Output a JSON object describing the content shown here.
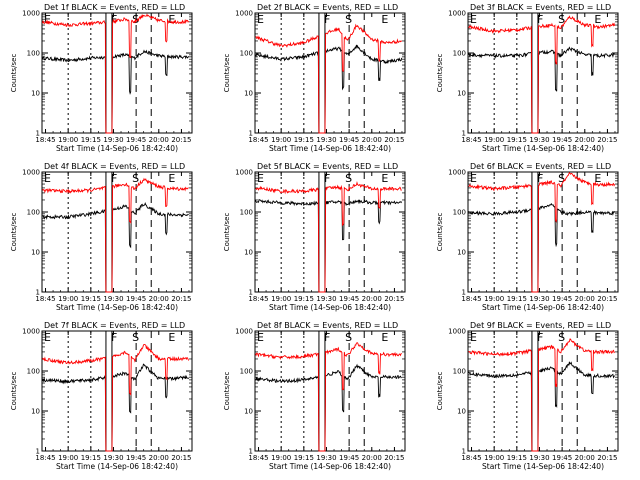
{
  "figure": {
    "xlabel": "Start Time (14-Sep-06 18:42:40)",
    "ylabel": "Counts/sec",
    "event_markers": [
      "F",
      "S",
      "E"
    ],
    "colors": {
      "events": "#000000",
      "lld": "#ff0000",
      "background": "#ffffff"
    }
  },
  "chart_data": [
    {
      "type": "line",
      "title": "Det 1f BLACK = Events, RED = LLD",
      "xlabel": "Start Time (14-Sep-06 18:42:40)",
      "ylabel": "Counts/sec",
      "yscale": "log",
      "ylim": [
        1,
        1000
      ],
      "xlim": [
        "18:42:40",
        "20:22:00"
      ],
      "x_ticks": [
        "18:45",
        "19:00",
        "19:15",
        "19:30",
        "19:45",
        "20:00",
        "20:15"
      ],
      "y_ticks": [
        "1",
        "10",
        "100",
        "1000"
      ],
      "series": [
        {
          "name": "Events",
          "color": "#000000",
          "x": [
            "18:43",
            "19:00",
            "19:15",
            "19:28",
            "19:38",
            "19:44",
            "19:50",
            "20:00",
            "20:10",
            "20:20"
          ],
          "y": [
            75,
            65,
            75,
            80,
            90,
            75,
            110,
            85,
            80,
            80
          ]
        },
        {
          "name": "LLD",
          "color": "#ff0000",
          "x": [
            "18:43",
            "19:00",
            "19:15",
            "19:28",
            "19:38",
            "19:44",
            "19:50",
            "20:00",
            "20:10",
            "20:20"
          ],
          "y": [
            600,
            500,
            550,
            600,
            700,
            600,
            900,
            650,
            600,
            600
          ]
        }
      ],
      "markers": {
        "F": "19:27",
        "S": "19:41",
        "E": "20:05"
      }
    },
    {
      "type": "line",
      "title": "Det 2f BLACK = Events, RED = LLD",
      "xlabel": "Start Time (14-Sep-06 18:42:40)",
      "ylabel": "Counts/sec",
      "yscale": "log",
      "ylim": [
        1,
        1000
      ],
      "xlim": [
        "18:42:40",
        "20:22:00"
      ],
      "x_ticks": [
        "18:45",
        "19:00",
        "19:15",
        "19:30",
        "19:45",
        "20:00",
        "20:15"
      ],
      "y_ticks": [
        "1",
        "10",
        "100",
        "1000"
      ],
      "series": [
        {
          "name": "Events",
          "color": "#000000",
          "x": [
            "18:43",
            "19:00",
            "19:15",
            "19:28",
            "19:38",
            "19:44",
            "19:50",
            "20:00",
            "20:10",
            "20:20"
          ],
          "y": [
            90,
            70,
            80,
            110,
            130,
            90,
            150,
            70,
            60,
            70
          ]
        },
        {
          "name": "LLD",
          "color": "#ff0000",
          "x": [
            "18:43",
            "19:00",
            "19:15",
            "19:28",
            "19:38",
            "19:44",
            "19:50",
            "20:00",
            "20:10",
            "20:20"
          ],
          "y": [
            250,
            150,
            180,
            300,
            400,
            200,
            500,
            220,
            180,
            200
          ]
        }
      ],
      "markers": {
        "F": "19:27",
        "S": "19:41",
        "E": "20:05"
      }
    },
    {
      "type": "line",
      "title": "Det 3f BLACK = Events, RED = LLD",
      "xlabel": "Start Time (14-Sep-06 18:42:40)",
      "ylabel": "Counts/sec",
      "yscale": "log",
      "ylim": [
        1,
        1000
      ],
      "xlim": [
        "18:42:40",
        "20:22:00"
      ],
      "x_ticks": [
        "18:45",
        "19:00",
        "19:15",
        "19:30",
        "19:45",
        "20:00",
        "20:15"
      ],
      "y_ticks": [
        "1",
        "10",
        "100",
        "1000"
      ],
      "series": [
        {
          "name": "Events",
          "color": "#000000",
          "x": [
            "18:43",
            "19:00",
            "19:15",
            "19:28",
            "19:38",
            "19:44",
            "19:50",
            "20:00",
            "20:10",
            "20:20"
          ],
          "y": [
            90,
            85,
            85,
            100,
            110,
            85,
            130,
            90,
            85,
            90
          ]
        },
        {
          "name": "LLD",
          "color": "#ff0000",
          "x": [
            "18:43",
            "19:00",
            "19:15",
            "19:28",
            "19:38",
            "19:44",
            "19:50",
            "20:00",
            "20:10",
            "20:20"
          ],
          "y": [
            450,
            350,
            380,
            450,
            500,
            420,
            800,
            500,
            450,
            500
          ]
        }
      ],
      "markers": {
        "F": "19:27",
        "S": "19:41",
        "E": "20:05"
      }
    },
    {
      "type": "line",
      "title": "Det 4f BLACK = Events, RED = LLD",
      "xlabel": "Start Time (14-Sep-06 18:42:40)",
      "ylabel": "Counts/sec",
      "yscale": "log",
      "ylim": [
        1,
        1000
      ],
      "xlim": [
        "18:42:40",
        "20:22:00"
      ],
      "x_ticks": [
        "18:45",
        "19:00",
        "19:15",
        "19:30",
        "19:45",
        "20:00",
        "20:15"
      ],
      "y_ticks": [
        "1",
        "10",
        "100",
        "1000"
      ],
      "series": [
        {
          "name": "Events",
          "color": "#000000",
          "x": [
            "18:43",
            "19:00",
            "19:15",
            "19:28",
            "19:38",
            "19:44",
            "19:50",
            "20:00",
            "20:10",
            "20:20"
          ],
          "y": [
            75,
            75,
            90,
            110,
            140,
            90,
            160,
            90,
            85,
            85
          ]
        },
        {
          "name": "LLD",
          "color": "#ff0000",
          "x": [
            "18:43",
            "19:00",
            "19:15",
            "19:28",
            "19:38",
            "19:44",
            "19:50",
            "20:00",
            "20:10",
            "20:20"
          ],
          "y": [
            350,
            330,
            350,
            420,
            500,
            380,
            650,
            430,
            380,
            380
          ]
        }
      ],
      "markers": {
        "F": "19:27",
        "S": "19:41",
        "E": "20:05"
      }
    },
    {
      "type": "line",
      "title": "Det 5f BLACK = Events, RED = LLD",
      "xlabel": "Start Time (14-Sep-06 18:42:40)",
      "ylabel": "Counts/sec",
      "yscale": "log",
      "ylim": [
        1,
        1000
      ],
      "xlim": [
        "18:42:40",
        "20:22:00"
      ],
      "x_ticks": [
        "18:45",
        "19:00",
        "19:15",
        "19:30",
        "19:45",
        "20:00",
        "20:15"
      ],
      "y_ticks": [
        "1",
        "10",
        "100",
        "1000"
      ],
      "series": [
        {
          "name": "Events",
          "color": "#000000",
          "x": [
            "18:43",
            "19:00",
            "19:15",
            "19:28",
            "19:38",
            "19:44",
            "19:50",
            "20:00",
            "20:10",
            "20:20"
          ],
          "y": [
            190,
            170,
            160,
            170,
            180,
            160,
            190,
            170,
            170,
            170
          ]
        },
        {
          "name": "LLD",
          "color": "#ff0000",
          "x": [
            "18:43",
            "19:00",
            "19:15",
            "19:28",
            "19:38",
            "19:44",
            "19:50",
            "20:00",
            "20:10",
            "20:20"
          ],
          "y": [
            400,
            330,
            330,
            380,
            420,
            360,
            500,
            380,
            380,
            380
          ]
        }
      ],
      "markers": {
        "F": "19:27",
        "S": "19:41",
        "E": "20:05"
      }
    },
    {
      "type": "line",
      "title": "Det 6f BLACK = Events, RED = LLD",
      "xlabel": "Start Time (14-Sep-06 18:42:40)",
      "ylabel": "Counts/sec",
      "yscale": "log",
      "ylim": [
        1,
        1000
      ],
      "xlim": [
        "18:42:40",
        "20:22:00"
      ],
      "x_ticks": [
        "18:45",
        "19:00",
        "19:15",
        "19:30",
        "19:45",
        "20:00",
        "20:15"
      ],
      "y_ticks": [
        "1",
        "10",
        "100",
        "1000"
      ],
      "series": [
        {
          "name": "Events",
          "color": "#000000",
          "x": [
            "18:43",
            "19:00",
            "19:15",
            "19:28",
            "19:38",
            "19:44",
            "19:50",
            "20:00",
            "20:10",
            "20:20"
          ],
          "y": [
            95,
            90,
            100,
            120,
            150,
            100,
            90,
            100,
            95,
            95
          ]
        },
        {
          "name": "LLD",
          "color": "#ff0000",
          "x": [
            "18:43",
            "19:00",
            "19:15",
            "19:28",
            "19:38",
            "19:44",
            "19:50",
            "20:00",
            "20:10",
            "20:20"
          ],
          "y": [
            450,
            380,
            420,
            480,
            550,
            450,
            900,
            550,
            480,
            500
          ]
        }
      ],
      "markers": {
        "F": "19:27",
        "S": "19:41",
        "E": "20:05"
      }
    },
    {
      "type": "line",
      "title": "Det 7f BLACK = Events, RED = LLD",
      "xlabel": "Start Time (14-Sep-06 18:42:40)",
      "ylabel": "Counts/sec",
      "yscale": "log",
      "ylim": [
        1,
        1000
      ],
      "xlim": [
        "18:42:40",
        "20:22:00"
      ],
      "x_ticks": [
        "18:45",
        "19:00",
        "19:15",
        "19:30",
        "19:45",
        "20:00",
        "20:15"
      ],
      "y_ticks": [
        "1",
        "10",
        "100",
        "1000"
      ],
      "series": [
        {
          "name": "Events",
          "color": "#000000",
          "x": [
            "18:43",
            "19:00",
            "19:15",
            "19:28",
            "19:38",
            "19:44",
            "19:50",
            "20:00",
            "20:10",
            "20:20"
          ],
          "y": [
            60,
            55,
            60,
            70,
            90,
            60,
            140,
            65,
            65,
            70
          ]
        },
        {
          "name": "LLD",
          "color": "#ff0000",
          "x": [
            "18:43",
            "19:00",
            "19:15",
            "19:28",
            "19:38",
            "19:44",
            "19:50",
            "20:00",
            "20:10",
            "20:20"
          ],
          "y": [
            200,
            160,
            180,
            220,
            300,
            180,
            450,
            200,
            200,
            200
          ]
        }
      ],
      "markers": {
        "F": "19:27",
        "S": "19:41",
        "E": "20:05"
      }
    },
    {
      "type": "line",
      "title": "Det 8f BLACK = Events, RED = LLD",
      "xlabel": "Start Time (14-Sep-06 18:42:40)",
      "ylabel": "Counts/sec",
      "yscale": "log",
      "ylim": [
        1,
        1000
      ],
      "xlim": [
        "18:42:40",
        "20:22:00"
      ],
      "x_ticks": [
        "18:45",
        "19:00",
        "19:15",
        "19:30",
        "19:45",
        "20:00",
        "20:15"
      ],
      "y_ticks": [
        "1",
        "10",
        "100",
        "1000"
      ],
      "series": [
        {
          "name": "Events",
          "color": "#000000",
          "x": [
            "18:43",
            "19:00",
            "19:15",
            "19:28",
            "19:38",
            "19:44",
            "19:50",
            "20:00",
            "20:10",
            "20:20"
          ],
          "y": [
            65,
            55,
            60,
            75,
            95,
            60,
            140,
            70,
            70,
            70
          ]
        },
        {
          "name": "LLD",
          "color": "#ff0000",
          "x": [
            "18:43",
            "19:00",
            "19:15",
            "19:28",
            "19:38",
            "19:44",
            "19:50",
            "20:00",
            "20:10",
            "20:20"
          ],
          "y": [
            260,
            220,
            230,
            280,
            350,
            240,
            500,
            270,
            260,
            260
          ]
        }
      ],
      "markers": {
        "F": "19:27",
        "S": "19:41",
        "E": "20:05"
      }
    },
    {
      "type": "line",
      "title": "Det 9f BLACK = Events, RED = LLD",
      "xlabel": "Start Time (14-Sep-06 18:42:40)",
      "ylabel": "Counts/sec",
      "yscale": "log",
      "ylim": [
        1,
        1000
      ],
      "xlim": [
        "18:42:40",
        "20:22:00"
      ],
      "x_ticks": [
        "18:45",
        "19:00",
        "19:15",
        "19:30",
        "19:45",
        "20:00",
        "20:15"
      ],
      "y_ticks": [
        "1",
        "10",
        "100",
        "1000"
      ],
      "series": [
        {
          "name": "Events",
          "color": "#000000",
          "x": [
            "18:43",
            "19:00",
            "19:15",
            "19:28",
            "19:38",
            "19:44",
            "19:50",
            "20:00",
            "20:10",
            "20:20"
          ],
          "y": [
            85,
            75,
            80,
            95,
            120,
            85,
            160,
            80,
            75,
            75
          ]
        },
        {
          "name": "LLD",
          "color": "#ff0000",
          "x": [
            "18:43",
            "19:00",
            "19:15",
            "19:28",
            "19:38",
            "19:44",
            "19:50",
            "20:00",
            "20:10",
            "20:20"
          ],
          "y": [
            300,
            260,
            280,
            330,
            400,
            300,
            600,
            320,
            300,
            300
          ]
        }
      ],
      "markers": {
        "F": "19:27",
        "S": "19:41",
        "E": "20:05"
      }
    }
  ]
}
